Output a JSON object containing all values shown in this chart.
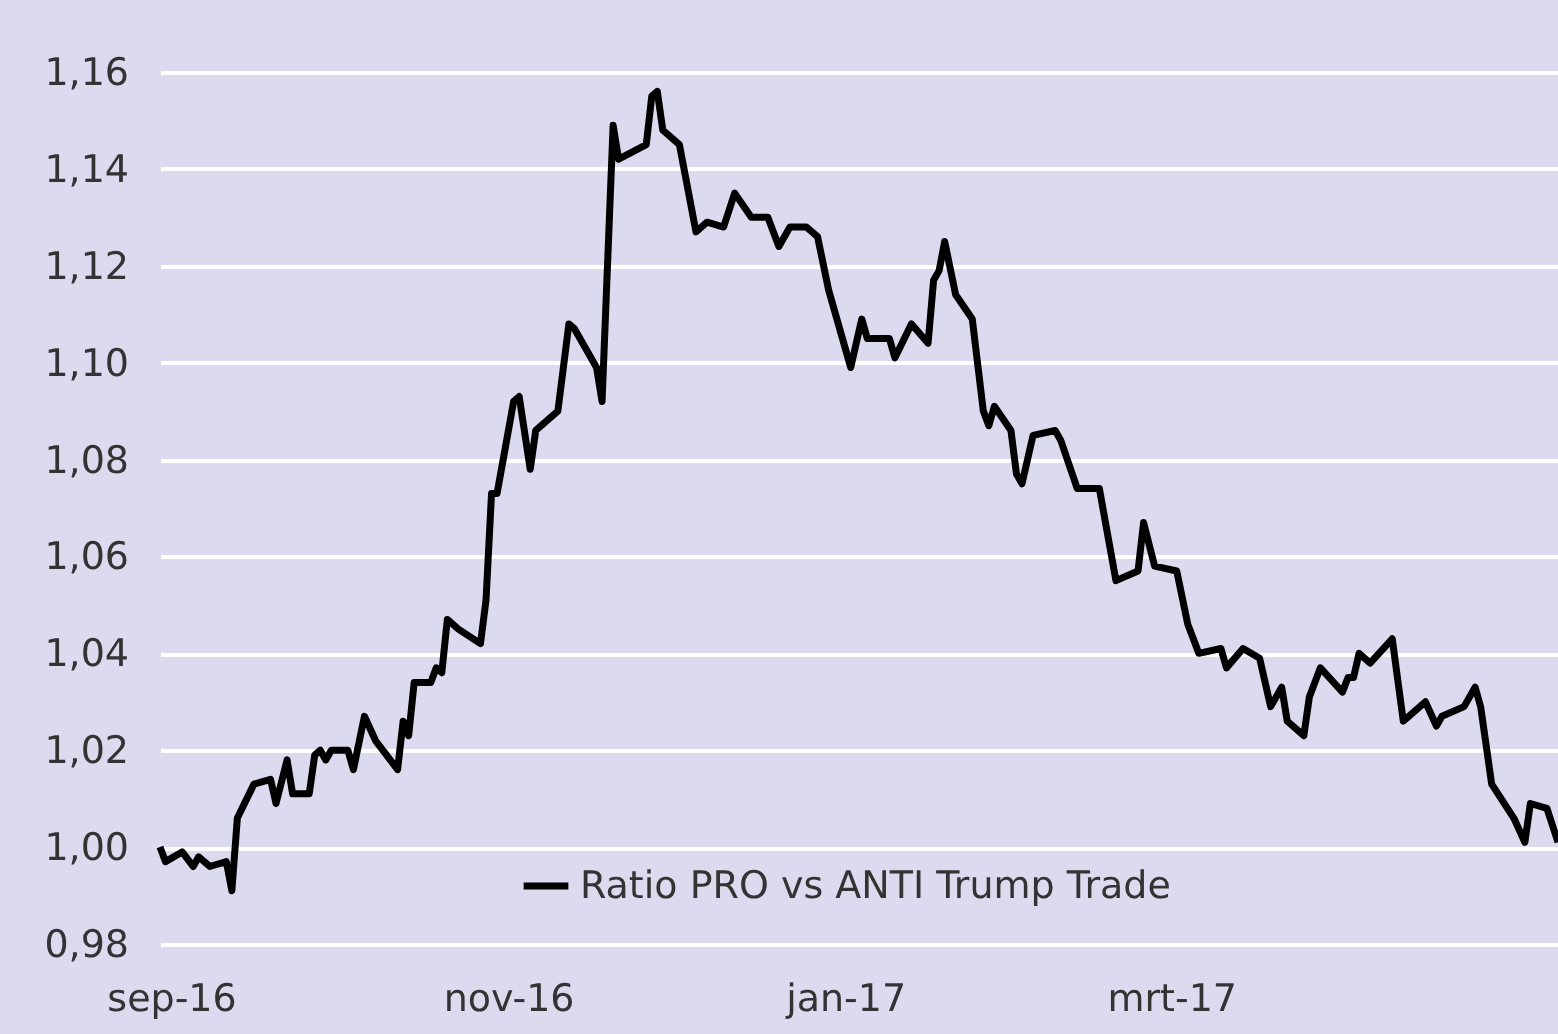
{
  "chart_data": {
    "type": "line",
    "x": [
      "2016-08-30",
      "2016-08-31",
      "2016-09-03",
      "2016-09-05",
      "2016-09-06",
      "2016-09-08",
      "2016-09-11",
      "2016-09-12",
      "2016-09-13",
      "2016-09-16",
      "2016-09-19",
      "2016-09-20",
      "2016-09-22",
      "2016-09-23",
      "2016-09-26",
      "2016-09-27",
      "2016-09-28",
      "2016-09-29",
      "2016-09-30",
      "2016-10-03",
      "2016-10-04",
      "2016-10-06",
      "2016-10-08",
      "2016-10-12",
      "2016-10-13",
      "2016-10-14",
      "2016-10-15",
      "2016-10-18",
      "2016-10-19",
      "2016-10-20",
      "2016-10-21",
      "2016-10-23",
      "2016-10-27",
      "2016-10-28",
      "2016-10-29",
      "2016-10-30",
      "2016-11-02",
      "2016-11-03",
      "2016-11-05",
      "2016-11-06",
      "2016-11-10",
      "2016-11-12",
      "2016-11-13",
      "2016-11-17",
      "2016-11-18",
      "2016-11-20",
      "2016-11-21",
      "2016-11-26",
      "2016-11-27",
      "2016-11-28",
      "2016-11-29",
      "2016-12-02",
      "2016-12-05",
      "2016-12-07",
      "2016-12-10",
      "2016-12-12",
      "2016-12-15",
      "2016-12-18",
      "2016-12-20",
      "2016-12-22",
      "2016-12-25",
      "2016-12-27",
      "2016-12-29",
      "2017-01-02",
      "2017-01-04",
      "2017-01-05",
      "2017-01-09",
      "2017-01-10",
      "2017-01-13",
      "2017-01-16",
      "2017-01-17",
      "2017-01-18",
      "2017-01-19",
      "2017-01-21",
      "2017-01-24",
      "2017-01-26",
      "2017-01-27",
      "2017-01-28",
      "2017-01-31",
      "2017-02-01",
      "2017-02-02",
      "2017-02-04",
      "2017-02-08",
      "2017-02-09",
      "2017-02-12",
      "2017-02-16",
      "2017-02-19",
      "2017-02-23",
      "2017-02-24",
      "2017-02-26",
      "2017-03-02",
      "2017-03-04",
      "2017-03-06",
      "2017-03-10",
      "2017-03-11",
      "2017-03-14",
      "2017-03-17",
      "2017-03-19",
      "2017-03-21",
      "2017-03-22",
      "2017-03-25",
      "2017-03-26",
      "2017-03-28",
      "2017-04-01",
      "2017-04-02",
      "2017-04-03",
      "2017-04-04",
      "2017-04-06",
      "2017-04-10",
      "2017-04-12",
      "2017-04-16",
      "2017-04-18",
      "2017-04-19",
      "2017-04-23",
      "2017-04-25",
      "2017-04-26",
      "2017-04-28",
      "2017-05-02",
      "2017-05-04",
      "2017-05-05",
      "2017-05-08",
      "2017-05-10"
    ],
    "series": [
      {
        "name": "Ratio PRO vs ANTI Trump Trade",
        "color": "#000000",
        "values": [
          1.0,
          0.997,
          0.999,
          0.996,
          0.998,
          0.996,
          0.997,
          0.991,
          1.006,
          1.013,
          1.014,
          1.009,
          1.018,
          1.011,
          1.011,
          1.019,
          1.02,
          1.018,
          1.02,
          1.02,
          1.016,
          1.027,
          1.022,
          1.016,
          1.026,
          1.023,
          1.034,
          1.034,
          1.037,
          1.036,
          1.047,
          1.045,
          1.042,
          1.051,
          1.073,
          1.073,
          1.092,
          1.093,
          1.078,
          1.086,
          1.09,
          1.108,
          1.107,
          1.099,
          1.092,
          1.149,
          1.142,
          1.145,
          1.155,
          1.156,
          1.148,
          1.145,
          1.127,
          1.129,
          1.128,
          1.135,
          1.13,
          1.13,
          1.124,
          1.128,
          1.128,
          1.126,
          1.115,
          1.099,
          1.109,
          1.105,
          1.105,
          1.101,
          1.108,
          1.104,
          1.117,
          1.119,
          1.125,
          1.114,
          1.109,
          1.09,
          1.087,
          1.091,
          1.086,
          1.077,
          1.075,
          1.085,
          1.086,
          1.084,
          1.074,
          1.074,
          1.055,
          1.057,
          1.067,
          1.058,
          1.057,
          1.046,
          1.04,
          1.041,
          1.037,
          1.041,
          1.039,
          1.029,
          1.033,
          1.026,
          1.023,
          1.031,
          1.037,
          1.032,
          1.035,
          1.035,
          1.04,
          1.038,
          1.043,
          1.026,
          1.03,
          1.025,
          1.027,
          1.029,
          1.033,
          1.029,
          1.013,
          1.006,
          1.001,
          1.009,
          1.008,
          1.001
        ]
      }
    ],
    "xlim": [
      "2016-08-30",
      "2017-05-10"
    ],
    "xticks": [
      {
        "value": "2016-09-01",
        "label": "sep-16"
      },
      {
        "value": "2016-11-01",
        "label": "nov-16"
      },
      {
        "value": "2017-01-01",
        "label": "jan-17"
      },
      {
        "value": "2017-03-01",
        "label": "mrt-17"
      }
    ],
    "ylim": [
      0.98,
      1.16
    ],
    "yticks": [
      {
        "value": 0.98,
        "label": "0,98"
      },
      {
        "value": 1.0,
        "label": "1,00"
      },
      {
        "value": 1.02,
        "label": "1,02"
      },
      {
        "value": 1.04,
        "label": "1,04"
      },
      {
        "value": 1.06,
        "label": "1,06"
      },
      {
        "value": 1.08,
        "label": "1,08"
      },
      {
        "value": 1.1,
        "label": "1,10"
      },
      {
        "value": 1.12,
        "label": "1,12"
      },
      {
        "value": 1.14,
        "label": "1,14"
      },
      {
        "value": 1.16,
        "label": "1,16"
      }
    ],
    "grid": "y",
    "legend": "bottom",
    "marker": "none",
    "line_style": "solid"
  }
}
